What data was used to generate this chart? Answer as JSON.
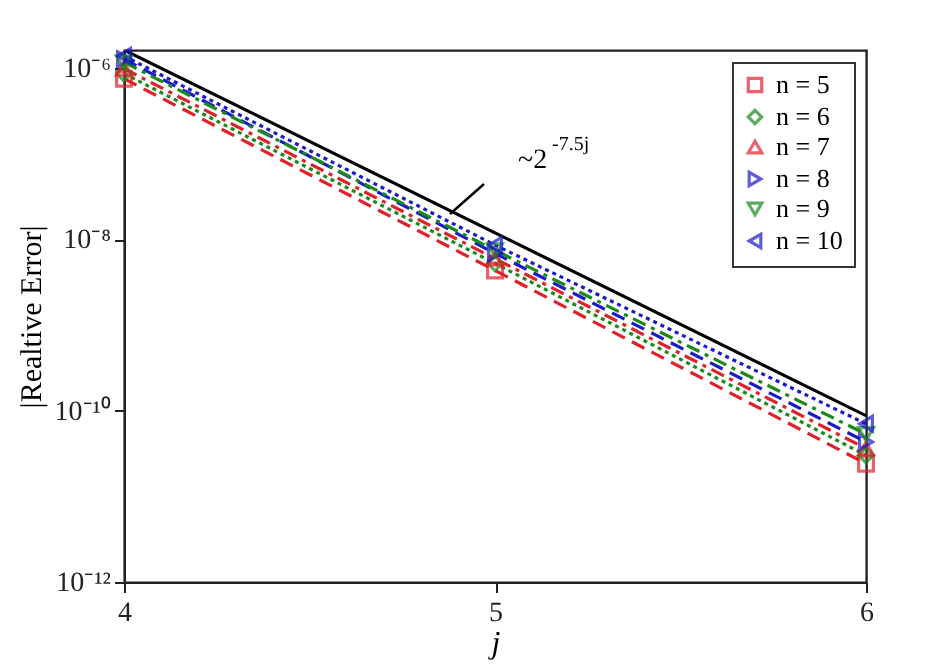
{
  "chart_data": {
    "type": "line",
    "xlabel": "j",
    "ylabel": "|Realtive Error|",
    "x": [
      4,
      5,
      6
    ],
    "series": [
      {
        "color": "#000000",
        "x": [
          4,
          6
        ],
        "values": [
          1.6e-06,
          8.7e-11
        ],
        "line_style": "solid",
        "marker": "none"
      },
      {
        "name": "n = 5",
        "color": "#e0202a",
        "values": [
          7.4e-07,
          4.3e-09,
          2.4e-11
        ],
        "line_style": "dashed",
        "marker": "square"
      },
      {
        "name": "n = 6",
        "color": "#1a8a1a",
        "values": [
          8.5e-07,
          5.2e-09,
          3e-11
        ],
        "line_style": "dotted",
        "marker": "diamond"
      },
      {
        "name": "n = 7",
        "color": "#e0202a",
        "values": [
          9.7e-07,
          5.9e-09,
          3.6e-11
        ],
        "line_style": "dashdot",
        "marker": "triangle-up"
      },
      {
        "name": "n = 8",
        "color": "#1a1ac8",
        "values": [
          1.25e-06,
          6.8e-09,
          4.3e-11
        ],
        "line_style": "dashed",
        "marker": "triangle-right"
      },
      {
        "name": "n = 9",
        "color": "#1a8a1a",
        "values": [
          1.15e-06,
          7.4e-09,
          5.3e-11
        ],
        "line_style": "dashdot",
        "marker": "triangle-down"
      },
      {
        "name": "n = 10",
        "color": "#1a1ac8",
        "values": [
          1.36e-06,
          8.5e-09,
          7e-11
        ],
        "line_style": "dotted",
        "marker": "triangle-left"
      }
    ],
    "annotations": [
      "~2$^{-7.5j}$"
    ],
    "log": true,
    "xlim": [
      4,
      6
    ],
    "xticks": [
      4,
      5,
      6
    ],
    "ylim": [
      1e-12,
      1.6e-06
    ],
    "yticks": [
      {
        "value": 1e-12,
        "label": "10⁻¹²"
      },
      {
        "value": 1e-10,
        "label": "10⁻¹⁰"
      },
      {
        "value": 1e-08,
        "label": "10⁻⁸"
      },
      {
        "value": 1e-06,
        "label": "10⁻⁶"
      }
    ],
    "grid": false,
    "legend": "top right"
  }
}
